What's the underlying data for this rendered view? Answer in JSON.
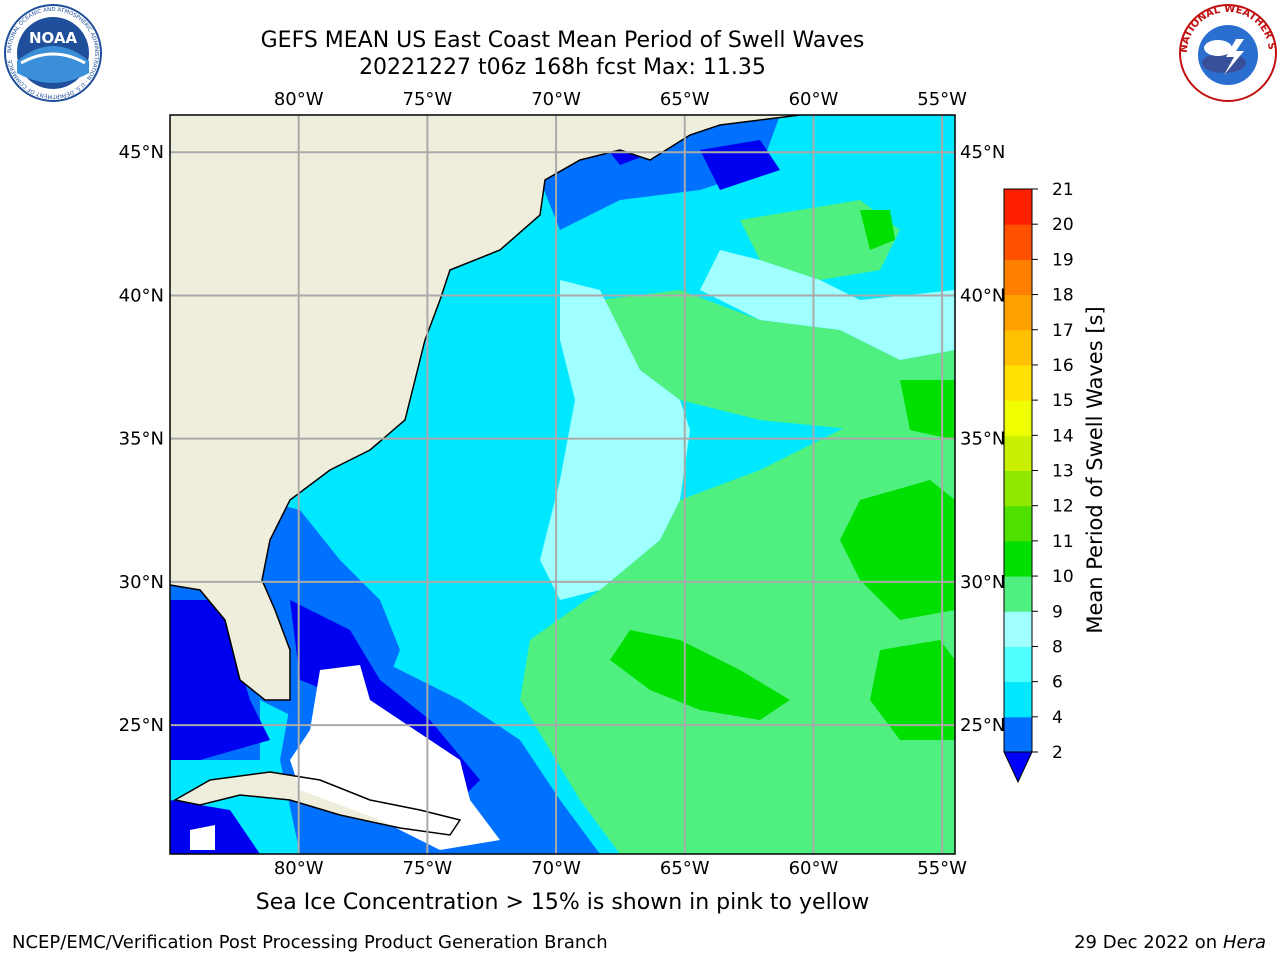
{
  "title_line1": "GEFS MEAN US East Coast Mean Period of Swell Waves",
  "title_line2": "20221227 t06z 168h fcst   Max: 11.35",
  "note": "Sea Ice Concentration > 15% is shown in pink to yellow",
  "footer_left": "NCEP/EMC/Verification Post Processing Product Generation Branch",
  "footer_date": "29 Dec 2022 on",
  "footer_host": "Hera",
  "logos": {
    "left": {
      "name": "noaa-logo",
      "text": "NOAA",
      "ring_text": "NATIONAL OCEANIC AND ATMOSPHERIC ADMINISTRATION · U.S. DEPARTMENT OF COMMERCE"
    },
    "right": {
      "name": "nws-logo",
      "ring_text": "NATIONAL WEATHER SERVICE"
    }
  },
  "map": {
    "lon_labels": [
      "80°W",
      "75°W",
      "70°W",
      "65°W",
      "60°W",
      "55°W"
    ],
    "lat_labels": [
      "45°N",
      "40°N",
      "35°N",
      "30°N",
      "25°N"
    ],
    "lon_range": [
      -85,
      -54.5
    ],
    "lat_range": [
      20.5,
      46.3
    ],
    "colors": {
      "land": "#efeedc",
      "grid": "#aaaaaa",
      "no_data": "#ffffff"
    }
  },
  "colorbar": {
    "label": "Mean Period of Swell Waves [s]",
    "ticks": [
      "21",
      "20",
      "19",
      "18",
      "17",
      "16",
      "15",
      "14",
      "13",
      "12",
      "11",
      "10",
      "9",
      "8",
      "6",
      "4",
      "2"
    ],
    "levels": [
      2,
      4,
      6,
      8,
      9,
      10,
      11,
      12,
      13,
      14,
      15,
      16,
      17,
      18,
      19,
      20,
      21
    ],
    "colors": [
      "#0070ff",
      "#00e8ff",
      "#50ffff",
      "#a0ffff",
      "#50f080",
      "#00e000",
      "#50e000",
      "#90e800",
      "#c8f000",
      "#f0ff00",
      "#ffe000",
      "#ffc000",
      "#ffa000",
      "#ff8000",
      "#ff5000",
      "#ff2000",
      "#ff0000"
    ],
    "under_color": "#0000ff"
  },
  "swell_colors": {
    "p2": "#0000f0",
    "p4": "#0070ff",
    "p6": "#00e8ff",
    "p8": "#50ffff",
    "p9": "#a0ffff",
    "p10": "#50f080",
    "p11": "#00e000"
  }
}
